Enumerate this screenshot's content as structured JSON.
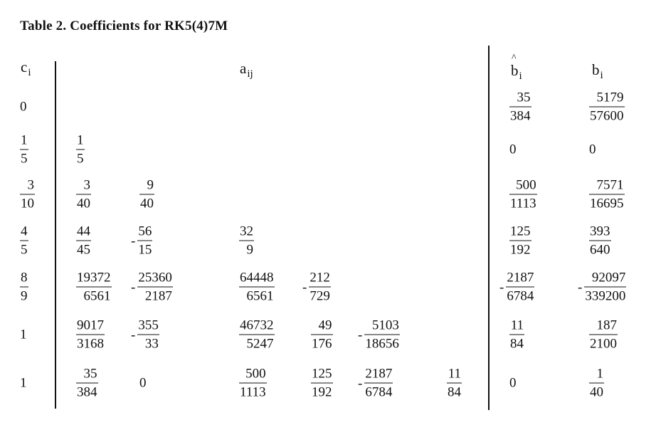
{
  "caption": "Table 2. Coefficients for RK5(4)7M",
  "headers": {
    "c": "c",
    "c_sub": "i",
    "a": "a",
    "a_sub": "ij",
    "bhat": "b",
    "bhat_sub": "i",
    "b": "b",
    "b_sub": "i"
  },
  "rows": [
    {
      "c": "0",
      "a": [],
      "bhat": "35/384",
      "b": "5179/57600"
    },
    {
      "c": "1/5",
      "a": [
        "1/5"
      ],
      "bhat": "0",
      "b": "0"
    },
    {
      "c": "3/10",
      "a": [
        "3/40",
        "9/40"
      ],
      "bhat": "500/1113",
      "b": "7571/16695"
    },
    {
      "c": "4/5",
      "a": [
        "44/45",
        "-56/15",
        "32/9"
      ],
      "bhat": "125/192",
      "b": "393/640"
    },
    {
      "c": "8/9",
      "a": [
        "19372/6561",
        "-25360/2187",
        "64448/6561",
        "-212/729"
      ],
      "bhat": "-2187/6784",
      "b": "-92097/339200"
    },
    {
      "c": "1",
      "a": [
        "9017/3168",
        "-355/33",
        "46732/5247",
        "49/176",
        "-5103/18656"
      ],
      "bhat": "11/84",
      "b": "187/2100"
    },
    {
      "c": "1",
      "a": [
        "35/384",
        "0",
        "500/1113",
        "125/192",
        "-2187/6784",
        "11/84"
      ],
      "bhat": "0",
      "b": "1/40"
    }
  ]
}
